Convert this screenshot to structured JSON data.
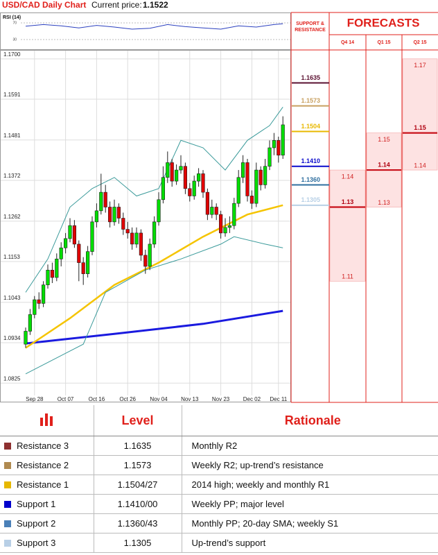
{
  "chart_data": {
    "type": "candlestick",
    "title": "USD/CAD Daily Chart",
    "current_price_label": "Current price:",
    "current_price": 1.1522,
    "ylim": [
      1.0773,
      1.1724
    ],
    "yticks": [
      {
        "value": 1.17,
        "label": "1.1700"
      },
      1.1591,
      1.1481,
      1.1372,
      1.1262,
      1.1153,
      1.1043,
      1.0934,
      1.0825
    ],
    "xticks": [
      {
        "value": 2,
        "label": "Sep 28"
      },
      {
        "value": 9,
        "label": "Oct 07"
      },
      {
        "value": 16,
        "label": "Oct 16"
      },
      {
        "value": 23,
        "label": "Oct 26"
      },
      {
        "value": 30,
        "label": "Nov 04"
      },
      {
        "value": 37,
        "label": "Nov 13"
      },
      {
        "value": 44,
        "label": "Nov 23"
      },
      {
        "value": 51,
        "label": "Dec 02"
      },
      {
        "value": 57,
        "label": "Dec 11"
      }
    ],
    "grid": true,
    "up_color": "#00dd00",
    "down_color": "#e00000",
    "open": [
      1.093,
      1.0965,
      1.101,
      1.105,
      1.104,
      1.109,
      1.113,
      1.111,
      1.116,
      1.119,
      1.1215,
      1.125,
      1.12,
      1.115,
      1.112,
      1.118,
      1.126,
      1.129,
      1.134,
      1.13,
      1.126,
      1.13,
      1.127,
      1.124,
      1.123,
      1.12,
      1.123,
      1.117,
      1.114,
      1.12,
      1.126,
      1.132,
      1.138,
      1.142,
      1.137,
      1.14,
      1.141,
      1.135,
      1.133,
      1.137,
      1.139,
      1.134,
      1.128,
      1.13,
      1.128,
      1.123,
      1.1245,
      1.125,
      1.131,
      1.138,
      1.142,
      1.133,
      1.131,
      1.14,
      1.136,
      1.141,
      1.146,
      1.148,
      1.144
    ],
    "high": [
      1.0975,
      1.1025,
      1.106,
      1.107,
      1.11,
      1.1145,
      1.115,
      1.1175,
      1.1205,
      1.123,
      1.127,
      1.1265,
      1.121,
      1.1165,
      1.1195,
      1.1275,
      1.131,
      1.139,
      1.136,
      1.1315,
      1.132,
      1.131,
      1.1285,
      1.126,
      1.1245,
      1.1245,
      1.124,
      1.1185,
      1.1215,
      1.1275,
      1.134,
      1.141,
      1.145,
      1.143,
      1.1415,
      1.144,
      1.142,
      1.1365,
      1.1385,
      1.1405,
      1.14,
      1.135,
      1.132,
      1.131,
      1.129,
      1.127,
      1.1275,
      1.1325,
      1.14,
      1.144,
      1.143,
      1.1345,
      1.142,
      1.141,
      1.143,
      1.148,
      1.15,
      1.149,
      1.1545
    ],
    "low": [
      1.092,
      1.0955,
      1.1,
      1.1025,
      1.103,
      1.108,
      1.1095,
      1.11,
      1.114,
      1.1175,
      1.1205,
      1.119,
      1.11,
      1.109,
      1.111,
      1.117,
      1.1245,
      1.128,
      1.1285,
      1.1245,
      1.125,
      1.1255,
      1.1225,
      1.1215,
      1.1185,
      1.119,
      1.1155,
      1.112,
      1.113,
      1.119,
      1.125,
      1.131,
      1.1365,
      1.1355,
      1.136,
      1.139,
      1.1335,
      1.1315,
      1.132,
      1.1355,
      1.1325,
      1.1265,
      1.127,
      1.1265,
      1.1215,
      1.122,
      1.123,
      1.124,
      1.13,
      1.1365,
      1.1315,
      1.1295,
      1.13,
      1.1345,
      1.135,
      1.14,
      1.144,
      1.142,
      1.143
    ],
    "close": [
      1.0965,
      1.101,
      1.105,
      1.104,
      1.109,
      1.113,
      1.111,
      1.116,
      1.119,
      1.1215,
      1.125,
      1.12,
      1.115,
      1.112,
      1.118,
      1.126,
      1.129,
      1.134,
      1.13,
      1.126,
      1.13,
      1.127,
      1.124,
      1.123,
      1.12,
      1.123,
      1.117,
      1.114,
      1.12,
      1.126,
      1.132,
      1.138,
      1.142,
      1.137,
      1.14,
      1.141,
      1.135,
      1.133,
      1.137,
      1.139,
      1.134,
      1.128,
      1.13,
      1.128,
      1.123,
      1.1245,
      1.125,
      1.131,
      1.138,
      1.142,
      1.133,
      1.131,
      1.14,
      1.136,
      1.141,
      1.146,
      1.148,
      1.144,
      1.1522
    ],
    "indicators": [
      {
        "color": "#1a1adf",
        "width": 3,
        "x": [
          0,
          20,
          40,
          58
        ],
        "values": [
          1.0932,
          1.0958,
          1.0985,
          1.102
        ]
      },
      {
        "color": "#f5c400",
        "width": 2.5,
        "x": [
          0,
          10,
          20,
          30,
          40,
          50,
          58
        ],
        "values": [
          1.092,
          1.1,
          1.109,
          1.115,
          1.122,
          1.128,
          1.1305
        ]
      },
      {
        "color": "#3a9a9a",
        "width": 1,
        "x": [
          0,
          5,
          10,
          15,
          20,
          25,
          30,
          35,
          40,
          45,
          50,
          55,
          58
        ],
        "values": [
          1.107,
          1.116,
          1.13,
          1.135,
          1.138,
          1.133,
          1.135,
          1.148,
          1.146,
          1.14,
          1.148,
          1.152,
          1.157
        ]
      },
      {
        "color": "#3a9a9a",
        "width": 1,
        "x": [
          0,
          13,
          18,
          27,
          35,
          44,
          47,
          54,
          58
        ],
        "values": [
          1.085,
          1.093,
          1.107,
          1.113,
          1.116,
          1.12,
          1.122,
          1.12,
          1.119
        ]
      }
    ],
    "rsi": {
      "title": "RSI (14)",
      "ylim": [
        5,
        95
      ],
      "yticks": [
        30,
        70
      ],
      "color": "#2a3fbf",
      "x": [
        0,
        4,
        8,
        12,
        16,
        20,
        24,
        28,
        32,
        36,
        40,
        44,
        48,
        52,
        56,
        58
      ],
      "values": [
        62,
        66,
        63,
        58,
        64,
        60,
        55,
        57,
        66,
        61,
        58,
        55,
        63,
        60,
        66,
        68
      ]
    },
    "levels_title": "SUPPORT & RESISTANCE",
    "levels": [
      {
        "value": 1.1635,
        "color": "#5a1030"
      },
      {
        "value": 1.1573,
        "color": "#c8a060"
      },
      {
        "value": 1.1504,
        "color": "#e8b800"
      },
      {
        "value": 1.141,
        "label": "1.1410",
        "color": "#0a0acc"
      },
      {
        "value": 1.136,
        "label": "1.1360",
        "color": "#2f6f9f"
      },
      {
        "value": 1.1305,
        "color": "#b8d0e6"
      }
    ],
    "forecasts_title": "FORECASTS",
    "forecasts": [
      {
        "label": "Q4 14",
        "high": 1.14,
        "mid": 1.13,
        "low": 1.11
      },
      {
        "label": "Q1 15",
        "high": 1.15,
        "mid": 1.14,
        "low": 1.13
      },
      {
        "label": "Q2 15",
        "high": 1.17,
        "mid": 1.15,
        "low": 1.14
      }
    ]
  },
  "table": {
    "header": [
      "Level",
      "Rationale"
    ],
    "rows": [
      {
        "name": "Resistance 3",
        "level": "1.1635",
        "rationale": "Monthly R2",
        "color": "#8e3030"
      },
      {
        "name": "Resistance 2",
        "level": "1.1573",
        "rationale": "Weekly R2; up-trend’s resistance",
        "color": "#b08a50"
      },
      {
        "name": "Resistance 1",
        "level": "1.1504/27",
        "rationale": "2014 high; weekly and monthly R1",
        "color": "#e6b800"
      },
      {
        "name": "Support 1",
        "level": "1.1410/00",
        "rationale": "Weekly PP; major level",
        "color": "#0000cc"
      },
      {
        "name": "Support 2",
        "level": "1.1360/43",
        "rationale": "Monthly PP; 20-day SMA; weekly S1",
        "color": "#4a80b8"
      },
      {
        "name": "Support 3",
        "level": "1.1305",
        "rationale": "Up-trend’s support",
        "color": "#b8cfe6"
      }
    ]
  }
}
